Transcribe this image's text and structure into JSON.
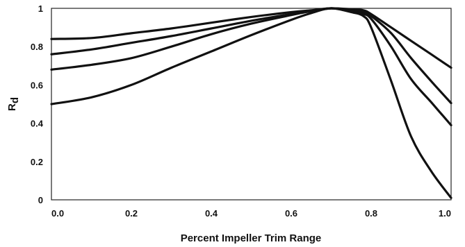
{
  "chart_data": {
    "type": "line",
    "title": "",
    "xlabel": "Percent Impeller Trim Range",
    "ylabel_main": "R",
    "ylabel_subscript": "d",
    "xlim": [
      0.0,
      1.0
    ],
    "ylim": [
      0,
      1
    ],
    "x_ticks": [
      "0.0",
      "0.2",
      "0.4",
      "0.6",
      "0.8",
      "1.0"
    ],
    "y_ticks": [
      "0",
      "0.2",
      "0.4",
      "0.6",
      "0.8",
      "1"
    ],
    "grid": false,
    "legend": "none",
    "line_color": "#111111",
    "series": [
      {
        "x": [
          0.0,
          0.1,
          0.2,
          0.3,
          0.4,
          0.5,
          0.6,
          0.65,
          0.7,
          0.75,
          0.78,
          0.8,
          0.85,
          0.9,
          0.95,
          1.0
        ],
        "y": [
          0.84,
          0.845,
          0.87,
          0.895,
          0.925,
          0.955,
          0.98,
          0.99,
          1.0,
          0.995,
          0.99,
          0.97,
          0.9,
          0.83,
          0.76,
          0.69
        ]
      },
      {
        "x": [
          0.0,
          0.1,
          0.2,
          0.3,
          0.4,
          0.5,
          0.6,
          0.65,
          0.7,
          0.75,
          0.78,
          0.8,
          0.85,
          0.9,
          0.95,
          1.0
        ],
        "y": [
          0.76,
          0.785,
          0.82,
          0.855,
          0.895,
          0.935,
          0.97,
          0.985,
          1.0,
          0.99,
          0.98,
          0.96,
          0.87,
          0.74,
          0.62,
          0.505
        ]
      },
      {
        "x": [
          0.0,
          0.1,
          0.2,
          0.3,
          0.4,
          0.5,
          0.6,
          0.65,
          0.7,
          0.75,
          0.78,
          0.8,
          0.85,
          0.9,
          0.95,
          1.0
        ],
        "y": [
          0.68,
          0.705,
          0.74,
          0.8,
          0.865,
          0.92,
          0.965,
          0.985,
          1.0,
          0.985,
          0.97,
          0.945,
          0.8,
          0.63,
          0.51,
          0.39
        ]
      },
      {
        "x": [
          0.0,
          0.1,
          0.2,
          0.3,
          0.4,
          0.5,
          0.6,
          0.65,
          0.7,
          0.75,
          0.78,
          0.8,
          0.85,
          0.9,
          0.95,
          1.0
        ],
        "y": [
          0.5,
          0.535,
          0.6,
          0.69,
          0.775,
          0.86,
          0.94,
          0.975,
          1.0,
          0.98,
          0.96,
          0.9,
          0.62,
          0.33,
          0.15,
          0.01
        ]
      }
    ]
  }
}
